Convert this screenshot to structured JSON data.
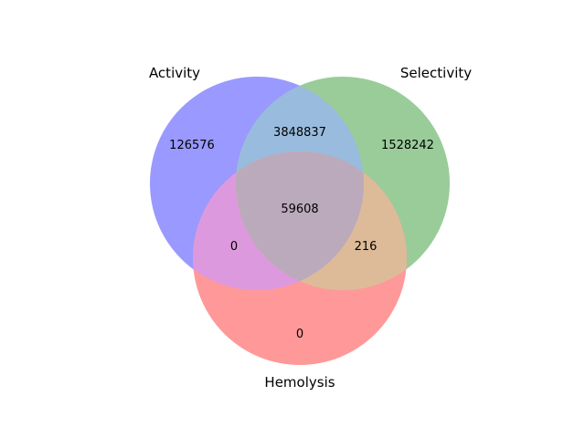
{
  "diagram": {
    "type": "venn3",
    "sets": [
      {
        "id": "activity",
        "label": "Activity",
        "color": "#9999ff"
      },
      {
        "id": "selectivity",
        "label": "Selectivity",
        "color": "#99cc99"
      },
      {
        "id": "hemolysis",
        "label": "Hemolysis",
        "color": "#ff9999"
      }
    ],
    "regions": {
      "activity_only": "126576",
      "selectivity_only": "1528242",
      "hemolysis_only": "0",
      "activity_selectivity": "3848837",
      "activity_hemolysis": "0",
      "selectivity_hemolysis": "216",
      "all_three": "59608"
    },
    "overlap_colors": {
      "activity_selectivity": "#99bbdd",
      "activity_hemolysis": "#dd99dd",
      "selectivity_hemolysis": "#ddbb99",
      "all_three": "#bbaabb"
    }
  }
}
